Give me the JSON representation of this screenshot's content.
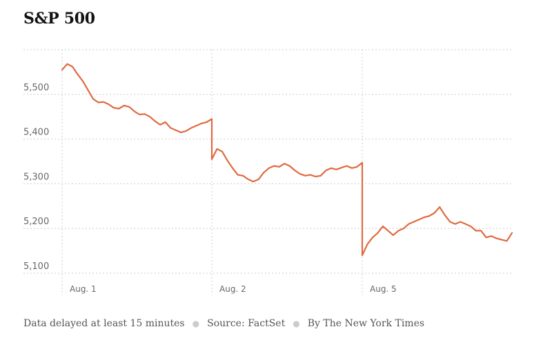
{
  "title": "S&P 500",
  "footer": {
    "delay_note": "Data delayed at least 15 minutes",
    "source": "Source: FactSet",
    "byline": "By The New York Times"
  },
  "colors": {
    "line": "#e0693f",
    "grid": "#cccccc",
    "axis_text": "#666666"
  },
  "chart_data": {
    "type": "line",
    "title": "S&P 500",
    "xlabel": "",
    "ylabel": "",
    "ylim": [
      5100,
      5600
    ],
    "yticks": [
      5100,
      5200,
      5300,
      5400,
      5500
    ],
    "ytick_labels": [
      "5,100",
      "5,200",
      "5,300",
      "5,400",
      "5,500"
    ],
    "grid": true,
    "categories": [
      "Aug. 1",
      "Aug. 2",
      "Aug. 5"
    ],
    "series": [
      {
        "values_by_day": [
          [
            5555,
            5568,
            5562,
            5545,
            5530,
            5510,
            5490,
            5482,
            5483,
            5478,
            5470,
            5468,
            5475,
            5472,
            5462,
            5455,
            5456,
            5450,
            5440,
            5432,
            5438,
            5425,
            5420,
            5415,
            5418,
            5425,
            5430,
            5435,
            5438,
            5445
          ],
          [
            5355,
            5378,
            5372,
            5352,
            5335,
            5320,
            5318,
            5310,
            5305,
            5310,
            5325,
            5335,
            5340,
            5338,
            5345,
            5340,
            5330,
            5322,
            5318,
            5320,
            5316,
            5318,
            5330,
            5335,
            5332,
            5336,
            5340,
            5335,
            5338,
            5347
          ],
          [
            5140,
            5165,
            5180,
            5190,
            5205,
            5195,
            5185,
            5195,
            5200,
            5210,
            5215,
            5220,
            5225,
            5228,
            5235,
            5248,
            5230,
            5215,
            5210,
            5215,
            5210,
            5205,
            5195,
            5195,
            5180,
            5183,
            5178,
            5175,
            5172,
            5190
          ]
        ]
      }
    ]
  }
}
